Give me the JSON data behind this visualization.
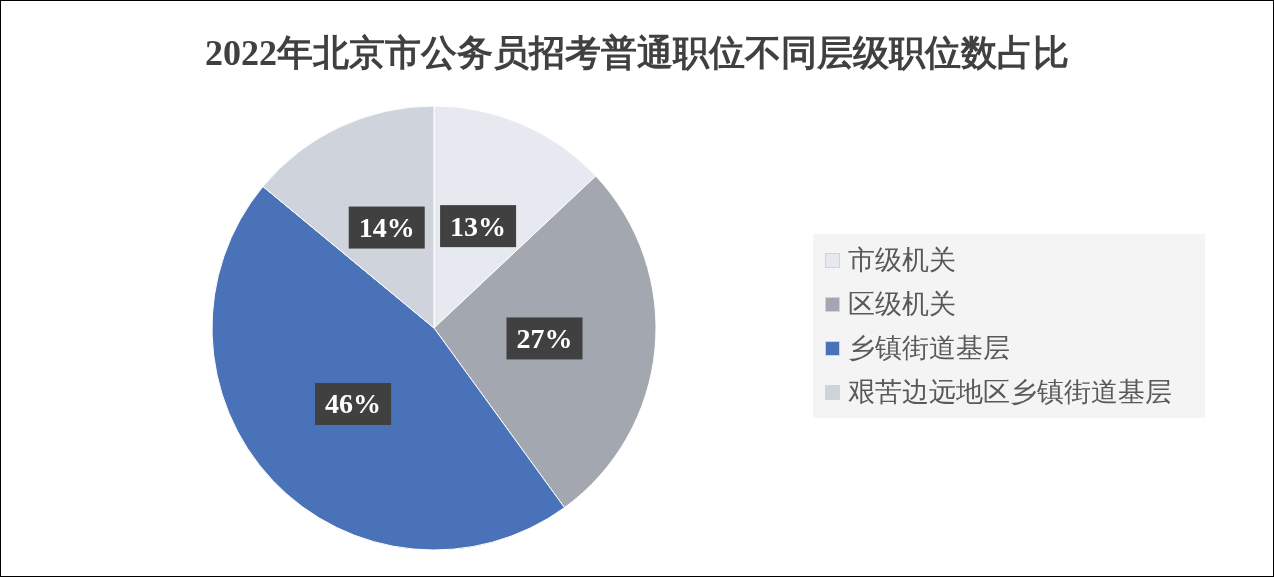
{
  "chart_data": {
    "type": "pie",
    "title": "2022年北京市公务员招考普通职位不同层级职位数占比",
    "categories": [
      "市级机关",
      "区级机关",
      "乡镇街道基层",
      "艰苦边远地区乡镇街道基层"
    ],
    "values": [
      13,
      27,
      46,
      14
    ],
    "colors": [
      "#e6e9ef",
      "#a3a8b0",
      "#4a72b8",
      "#cfd3db"
    ],
    "value_labels": [
      "13%",
      "27%",
      "46%",
      "14%"
    ],
    "legend": "right"
  }
}
